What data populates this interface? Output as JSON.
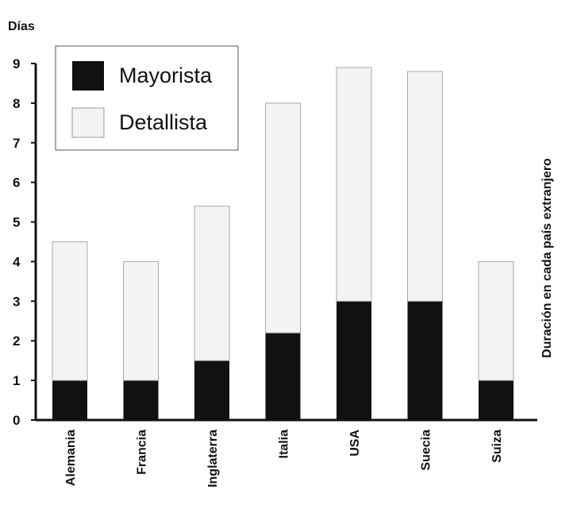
{
  "chart_data": {
    "type": "bar",
    "stacked": true,
    "y_unit_label": "Días",
    "right_label": "Duración en cada país extranjero",
    "categories": [
      "Alemania",
      "Francia",
      "Inglaterra",
      "Italia",
      "USA",
      "Suecia",
      "Suiza"
    ],
    "series": [
      {
        "name": "Mayorista",
        "values": [
          1,
          1,
          1.5,
          2.2,
          3,
          3,
          1
        ],
        "color": "#111111"
      },
      {
        "name": "Detallista",
        "values": [
          3.5,
          3,
          3.9,
          5.8,
          5.9,
          5.8,
          3
        ],
        "color": "#f3f3f3"
      }
    ],
    "ylim": [
      0,
      9
    ],
    "yticks": [
      "0",
      "1",
      "2",
      "3",
      "4",
      "5",
      "6",
      "7",
      "8",
      "9"
    ],
    "grid": false,
    "legend_position": "top-left"
  }
}
